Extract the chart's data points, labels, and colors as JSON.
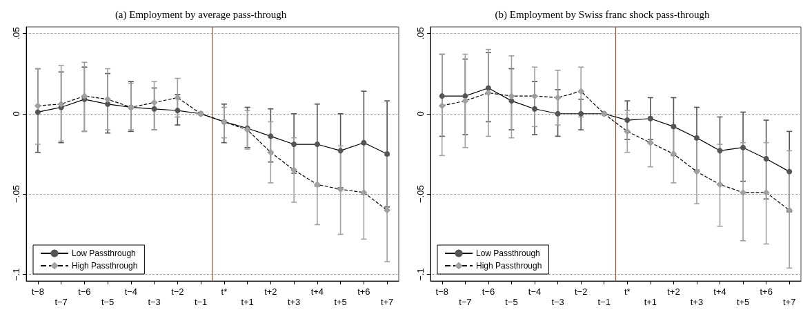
{
  "chart_data": [
    {
      "type": "line",
      "title": "(a) Employment by average pass-through",
      "categories": [
        "t−8",
        "t−7",
        "t−6",
        "t−5",
        "t−4",
        "t−3",
        "t−2",
        "t−1",
        "t*",
        "t+1",
        "t+2",
        "t+3",
        "t+4",
        "t+5",
        "t+6",
        "t+7"
      ],
      "ylim": [
        -0.104,
        0.054
      ],
      "yticks": [
        {
          "value": -0.1,
          "label": "−.1"
        },
        {
          "value": -0.05,
          "label": "−.05"
        },
        0,
        {
          "value": 0.05,
          "label": ".05"
        }
      ],
      "grid": "y",
      "legend": "bottom left",
      "ref_lines": [
        {
          "axis": "x",
          "value": "t*",
          "color": "#a0522d"
        }
      ],
      "series": [
        {
          "name": "Low Passthrough",
          "color": "#555555",
          "marker": "circle",
          "line_style": "solid",
          "values": [
            0.001,
            0.004,
            0.009,
            0.006,
            0.004,
            0.003,
            0.002,
            0,
            -0.005,
            -0.009,
            -0.014,
            -0.019,
            -0.019,
            -0.023,
            -0.018,
            -0.025
          ],
          "errors": [
            [
              -0.024,
              0.028
            ],
            [
              -0.018,
              0.026
            ],
            [
              -0.011,
              0.029
            ],
            [
              -0.012,
              0.025
            ],
            [
              -0.011,
              0.02
            ],
            [
              -0.01,
              0.016
            ],
            [
              -0.007,
              0.012
            ],
            null,
            [
              -0.018,
              0.006
            ],
            [
              -0.021,
              0.004
            ],
            [
              -0.03,
              0.003
            ],
            [
              -0.037,
              0.0
            ],
            [
              -0.045,
              0.006
            ],
            [
              -0.046,
              0.0
            ],
            [
              -0.05,
              0.014
            ],
            [
              -0.058,
              0.008
            ]
          ]
        },
        {
          "name": "High Passthrough",
          "color": "#a0a0a0",
          "marker": "diamond",
          "line_style": "dashed",
          "values": [
            0.005,
            0.006,
            0.011,
            0.009,
            0.004,
            0.007,
            0.01,
            0,
            -0.005,
            -0.01,
            -0.024,
            -0.035,
            -0.044,
            -0.047,
            -0.049,
            -0.06
          ],
          "errors": [
            [
              -0.019,
              0.028
            ],
            [
              -0.017,
              0.03
            ],
            [
              -0.011,
              0.032
            ],
            [
              -0.01,
              0.028
            ],
            [
              -0.01,
              0.019
            ],
            [
              -0.01,
              0.02
            ],
            [
              -0.002,
              0.022
            ],
            null,
            [
              -0.015,
              0.004
            ],
            [
              -0.022,
              0.002
            ],
            [
              -0.043,
              -0.005
            ],
            [
              -0.055,
              -0.015
            ],
            [
              -0.069,
              -0.019
            ],
            [
              -0.075,
              -0.02
            ],
            [
              -0.078,
              -0.019
            ],
            [
              -0.092,
              -0.026
            ]
          ]
        }
      ]
    },
    {
      "type": "line",
      "title": "(b) Employment by Swiss franc shock pass-through",
      "categories": [
        "t−8",
        "t−7",
        "t−6",
        "t−5",
        "t−4",
        "t−3",
        "t−2",
        "t−1",
        "t*",
        "t+1",
        "t+2",
        "t+3",
        "t+4",
        "t+5",
        "t+6",
        "t+7"
      ],
      "ylim": [
        -0.104,
        0.054
      ],
      "yticks": [
        {
          "value": -0.1,
          "label": "−.1"
        },
        {
          "value": -0.05,
          "label": "−.05"
        },
        0,
        {
          "value": 0.05,
          "label": ".05"
        }
      ],
      "grid": "y",
      "legend": "bottom left",
      "ref_lines": [
        {
          "axis": "x",
          "value": "t*",
          "color": "#a0522d"
        }
      ],
      "series": [
        {
          "name": "Low Passthrough",
          "color": "#555555",
          "marker": "circle",
          "line_style": "solid",
          "values": [
            0.011,
            0.011,
            0.016,
            0.008,
            0.003,
            0,
            0,
            0,
            -0.004,
            -0.003,
            -0.008,
            -0.015,
            -0.023,
            -0.021,
            -0.028,
            -0.036
          ],
          "errors": [
            [
              -0.014,
              0.037
            ],
            [
              -0.013,
              0.034
            ],
            [
              -0.005,
              0.038
            ],
            [
              -0.01,
              0.028
            ],
            [
              -0.013,
              0.02
            ],
            [
              -0.014,
              0.015
            ],
            [
              -0.01,
              0.009
            ],
            null,
            [
              -0.016,
              0.008
            ],
            [
              -0.016,
              0.01
            ],
            [
              -0.026,
              0.01
            ],
            [
              -0.035,
              0.004
            ],
            [
              -0.044,
              -0.002
            ],
            [
              -0.042,
              0.001
            ],
            [
              -0.053,
              -0.004
            ],
            [
              -0.061,
              -0.011
            ]
          ]
        },
        {
          "name": "High Passthrough",
          "color": "#a0a0a0",
          "marker": "diamond",
          "line_style": "dashed",
          "values": [
            0.005,
            0.008,
            0.013,
            0.011,
            0.011,
            0.01,
            0.014,
            0,
            -0.011,
            -0.018,
            -0.025,
            -0.036,
            -0.044,
            -0.049,
            -0.049,
            -0.06
          ],
          "errors": [
            [
              -0.026,
              0.037
            ],
            [
              -0.021,
              0.037
            ],
            [
              -0.014,
              0.04
            ],
            [
              -0.015,
              0.036
            ],
            [
              -0.008,
              0.029
            ],
            [
              -0.007,
              0.027
            ],
            [
              -0.002,
              0.029
            ],
            null,
            [
              -0.024,
              0.002
            ],
            [
              -0.033,
              -0.002
            ],
            [
              -0.043,
              -0.007
            ],
            [
              -0.056,
              -0.016
            ],
            [
              -0.07,
              -0.019
            ],
            [
              -0.079,
              -0.018
            ],
            [
              -0.081,
              -0.018
            ],
            [
              -0.096,
              -0.023
            ]
          ]
        }
      ]
    }
  ]
}
